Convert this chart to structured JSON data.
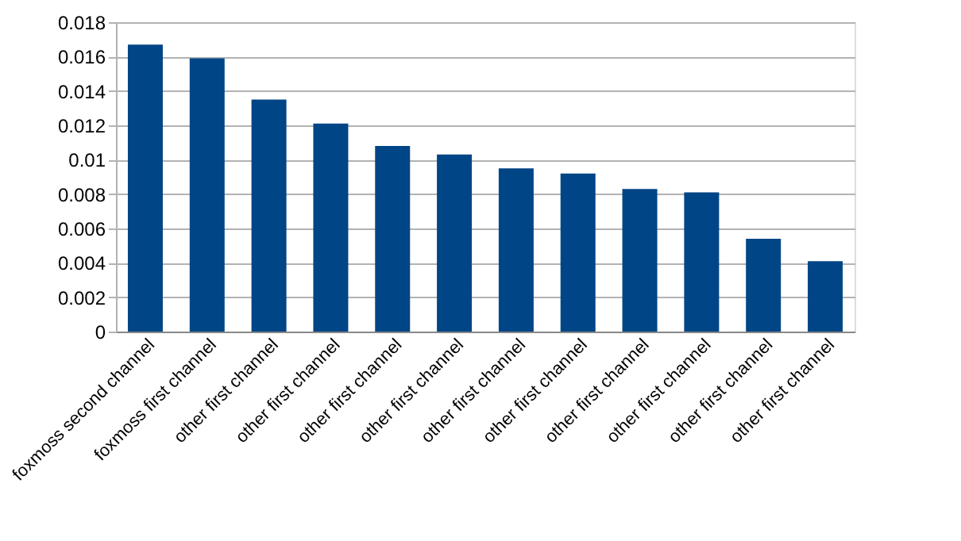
{
  "chart_data": {
    "type": "bar",
    "categories": [
      "foxmoss second channel",
      "foxmoss first channel",
      "other first channel",
      "other first channel",
      "other first channel",
      "other first channel",
      "other first channel",
      "other first channel",
      "other first channel",
      "other first channel",
      "other first channel",
      "other first channel"
    ],
    "values": [
      0.0167,
      0.0159,
      0.0135,
      0.0121,
      0.0108,
      0.0103,
      0.0095,
      0.0092,
      0.0083,
      0.0081,
      0.0054,
      0.0041
    ],
    "color": "#004586",
    "ylim": [
      0,
      0.018
    ],
    "yticks": [
      0,
      0.002,
      0.004,
      0.006,
      0.008,
      0.01,
      0.012,
      0.014,
      0.016,
      0.018
    ],
    "grid": "y"
  }
}
